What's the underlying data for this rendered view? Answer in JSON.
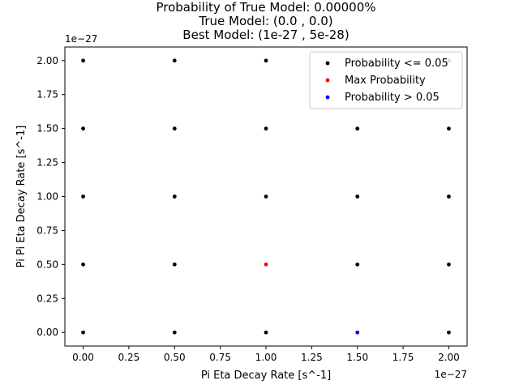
{
  "chart_data": {
    "type": "scatter",
    "title_lines": [
      "Probability of True Model: 0.00000%",
      "True Model: (0.0 , 0.0)",
      "Best Model: (1e-27 , 5e-28)"
    ],
    "xlabel": "Pi Eta Decay Rate [s^-1]",
    "ylabel": "Pi Pi Eta Decay Rate [s^-1]",
    "x_offset_label": "1e−27",
    "y_offset_label": "1e−27",
    "xlim": [
      -0.1,
      2.1
    ],
    "ylim": [
      -0.1,
      2.1
    ],
    "x_ticks": [
      0.0,
      0.25,
      0.5,
      0.75,
      1.0,
      1.25,
      1.5,
      1.75,
      2.0
    ],
    "x_tick_labels": [
      "0.00",
      "0.25",
      "0.50",
      "0.75",
      "1.00",
      "1.25",
      "1.50",
      "1.75",
      "2.00"
    ],
    "y_ticks": [
      0.0,
      0.25,
      0.5,
      0.75,
      1.0,
      1.25,
      1.5,
      1.75,
      2.0
    ],
    "y_tick_labels": [
      "0.00",
      "0.25",
      "0.50",
      "0.75",
      "1.00",
      "1.25",
      "1.50",
      "1.75",
      "2.00"
    ],
    "grid": false,
    "legend_position": "top-right",
    "series": [
      {
        "name": "Probability <= 0.05",
        "color": "#000000",
        "x": [
          0.0,
          0.0,
          0.0,
          0.0,
          0.0,
          0.5,
          0.5,
          0.5,
          0.5,
          0.5,
          1.0,
          1.0,
          1.0,
          1.0,
          1.5,
          1.5,
          1.5,
          1.5,
          2.0,
          2.0,
          2.0,
          2.0,
          2.0
        ],
        "y": [
          0.0,
          0.5,
          1.0,
          1.5,
          2.0,
          0.0,
          0.5,
          1.0,
          1.5,
          2.0,
          0.0,
          1.0,
          1.5,
          2.0,
          0.5,
          1.0,
          1.5,
          2.0,
          0.0,
          0.5,
          1.0,
          1.5,
          2.0
        ]
      },
      {
        "name": "Max Probability",
        "color": "#ff0000",
        "x": [
          1.0
        ],
        "y": [
          0.5
        ]
      },
      {
        "name": "Probability > 0.05",
        "color": "#0000ff",
        "x": [
          1.5
        ],
        "y": [
          0.0
        ]
      }
    ]
  }
}
